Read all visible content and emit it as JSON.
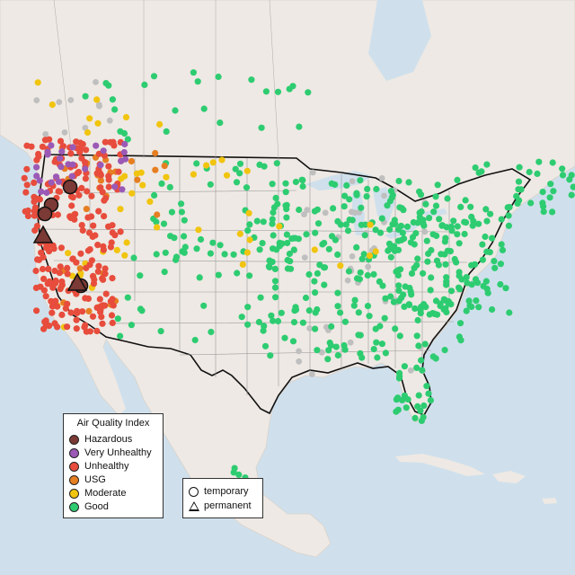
{
  "legend": {
    "title": "Air Quality Index",
    "items": [
      {
        "label": "Hazardous",
        "color": "#7b3a35"
      },
      {
        "label": "Very Unhealthy",
        "color": "#9b59b6"
      },
      {
        "label": "Unhealthy",
        "color": "#e74c3c"
      },
      {
        "label": "USG",
        "color": "#e67e22"
      },
      {
        "label": "Moderate",
        "color": "#f1c40f"
      },
      {
        "label": "Good",
        "color": "#2ecc71"
      }
    ]
  },
  "monitor_types": [
    {
      "label": "temporary",
      "shape": "circle"
    },
    {
      "label": "permanent",
      "shape": "triangle"
    }
  ],
  "map_colors": {
    "water": "#cfe0ec",
    "land": "#eee9e4",
    "inactive_sensor": "#bfbfbf"
  }
}
